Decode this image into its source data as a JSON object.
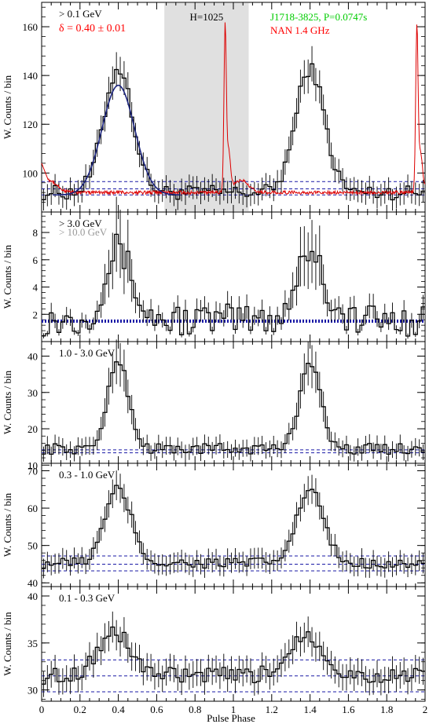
{
  "figure": {
    "xlabel": "Pulse Phase",
    "xlim": [
      0,
      2
    ],
    "xticks": [
      "0",
      "0.2",
      "0.4",
      "0.6",
      "0.8",
      "1",
      "1.2",
      "1.4",
      "1.6",
      "1.8",
      "2"
    ],
    "ylabel": "W. Counts / bin",
    "colors": {
      "axis": "#000000",
      "histogram": "#000000",
      "radio": "#dd0000",
      "fit": "#1a237e",
      "background_line": "#1a1aa6",
      "offpulse_region": "#e0e0e0",
      "label_red": "#ff0000",
      "label_green": "#00cc00",
      "label_gray": "#999999"
    }
  },
  "chart_data": [
    {
      "type": "line",
      "panel": "> 0.1 GeV",
      "ylim": [
        84,
        170
      ],
      "yticks": [
        "100",
        "120",
        "140",
        "160"
      ],
      "labels": {
        "energy": "> 0.1 GeV",
        "delta": "δ = 0.40 ± 0.01",
        "htest": "H=1025",
        "pulsar": "J1718-3825, P=0.0747s",
        "radio": "NAN 1.4 GHz"
      },
      "offpulse": [
        0.64,
        1.08
      ],
      "baselines": [
        91,
        93.5,
        96.5
      ],
      "peak": {
        "phase": 0.4,
        "height": 143,
        "width": 0.12
      },
      "base": 92,
      "noise": 3,
      "errfrac": 0.05,
      "radio_curve": {
        "base": 92,
        "peak_phase": 0.957,
        "peak_height": 158,
        "secondary_phase": 0.975,
        "secondary_height": 108,
        "hump_phase": 1.04,
        "hump_height": 97
      },
      "fit_curve": {
        "center": 0.4,
        "amplitude": 45,
        "sigma": 0.085,
        "base": 91
      }
    },
    {
      "type": "line",
      "panel": "> 3.0 GeV",
      "ylim": [
        0,
        9.5
      ],
      "yticks": [
        "2",
        "4",
        "6",
        "8"
      ],
      "labels": {
        "energy": "> 3.0 GeV",
        "energy2": "> 10.0 GeV"
      },
      "baselines": [
        1.45,
        1.55
      ],
      "peak": {
        "phase": 0.4,
        "height": 6.8,
        "width": 0.11
      },
      "base": 1.6,
      "noise": 1.2,
      "errfrac": 0.35
    },
    {
      "type": "line",
      "panel": "1.0 - 3.0 GeV",
      "ylim": [
        10.5,
        44
      ],
      "yticks": [
        "10",
        "20",
        "30",
        "40"
      ],
      "labels": {
        "energy": "1.0 - 3.0 GeV"
      },
      "baselines": [
        13.4,
        14.2
      ],
      "peak": {
        "phase": 0.4,
        "height": 39,
        "width": 0.085
      },
      "base": 14.5,
      "noise": 1.5,
      "errfrac": 0.16
    },
    {
      "type": "line",
      "panel": "0.3 - 1.0 GeV",
      "ylim": [
        39,
        72
      ],
      "yticks": [
        "40",
        "50",
        "60",
        "70"
      ],
      "labels": {
        "energy": "0.3 - 1.0 GeV"
      },
      "baselines": [
        43.2,
        45,
        47.2
      ],
      "peak": {
        "phase": 0.4,
        "height": 65,
        "width": 0.11
      },
      "base": 45.3,
      "noise": 1.5,
      "errfrac": 0.06
    },
    {
      "type": "line",
      "panel": "0.1 - 0.3 GeV",
      "ylim": [
        28.8,
        41
      ],
      "yticks": [
        "30",
        "35",
        "40"
      ],
      "labels": {
        "energy": "0.1 - 0.3 GeV"
      },
      "baselines": [
        29.8,
        31.5,
        33.2
      ],
      "peak": {
        "phase": 0.38,
        "height": 36,
        "width": 0.14
      },
      "base": 31.5,
      "noise": 0.9,
      "errfrac": 0.045
    }
  ]
}
